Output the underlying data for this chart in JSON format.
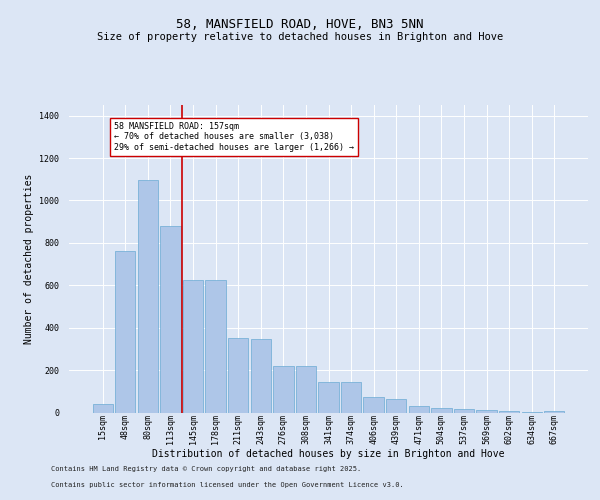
{
  "title": "58, MANSFIELD ROAD, HOVE, BN3 5NN",
  "subtitle": "Size of property relative to detached houses in Brighton and Hove",
  "xlabel": "Distribution of detached houses by size in Brighton and Hove",
  "ylabel": "Number of detached properties",
  "categories": [
    "15sqm",
    "48sqm",
    "80sqm",
    "113sqm",
    "145sqm",
    "178sqm",
    "211sqm",
    "243sqm",
    "276sqm",
    "308sqm",
    "341sqm",
    "374sqm",
    "406sqm",
    "439sqm",
    "471sqm",
    "504sqm",
    "537sqm",
    "569sqm",
    "602sqm",
    "634sqm",
    "667sqm"
  ],
  "values": [
    40,
    760,
    1095,
    880,
    625,
    625,
    350,
    345,
    220,
    220,
    145,
    145,
    75,
    65,
    30,
    20,
    15,
    10,
    8,
    3,
    8
  ],
  "bar_color": "#aec6e8",
  "bar_edge_color": "#6aaad4",
  "vline_color": "#cc0000",
  "annotation_text": "58 MANSFIELD ROAD: 157sqm\n← 70% of detached houses are smaller (3,038)\n29% of semi-detached houses are larger (1,266) →",
  "annotation_box_color": "#ffffff",
  "annotation_box_edge": "#cc0000",
  "background_color": "#dce6f5",
  "plot_bg_color": "#dce6f5",
  "footer_line1": "Contains HM Land Registry data © Crown copyright and database right 2025.",
  "footer_line2": "Contains public sector information licensed under the Open Government Licence v3.0.",
  "ylim": [
    0,
    1450
  ],
  "title_fontsize": 9,
  "subtitle_fontsize": 7.5,
  "tick_fontsize": 6,
  "label_fontsize": 7,
  "annotation_fontsize": 6,
  "footer_fontsize": 5
}
